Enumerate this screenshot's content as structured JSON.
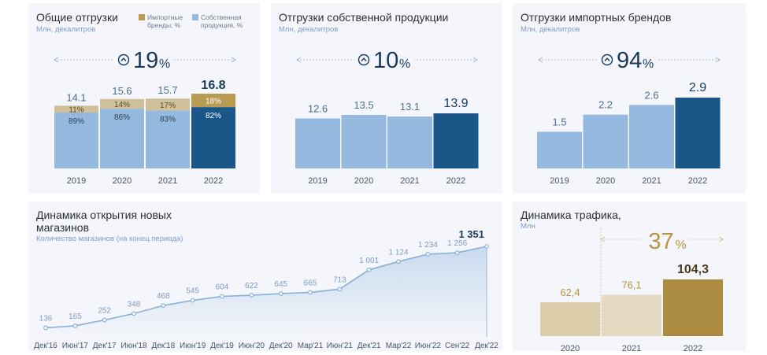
{
  "colors": {
    "own_light": "#95b8de",
    "own_dark": "#1a5688",
    "import_share": "#cfc09a",
    "import_share_dark": "#b89a52",
    "line": "#8ab0d8",
    "traffic_light": "#dbcdaa",
    "traffic_light2": "#e6dbc2",
    "traffic_dark": "#ab8b3f",
    "gold_text": "#b8953e"
  },
  "chart_data": [
    {
      "id": "total_shipments",
      "type": "bar",
      "title": "Общие отгрузки",
      "subtitle": "Млн, декалитров",
      "categories": [
        "2019",
        "2020",
        "2021",
        "2022"
      ],
      "values": [
        14.1,
        15.6,
        15.7,
        16.8
      ],
      "value_labels": [
        "14.1",
        "15.6",
        "15.7",
        "16.8"
      ],
      "series": [
        {
          "name": "Импортные бренды, %",
          "values": [
            11,
            14,
            17,
            18
          ],
          "labels": [
            "11%",
            "14%",
            "17%",
            "18%"
          ]
        },
        {
          "name": "Собственная продукция, %",
          "values": [
            89,
            86,
            83,
            82
          ],
          "labels": [
            "89%",
            "86%",
            "83%",
            "82%"
          ]
        }
      ],
      "growth": {
        "number": "19",
        "unit": "%"
      },
      "ylim": [
        0,
        18
      ]
    },
    {
      "id": "own_shipments",
      "type": "bar",
      "title": "Отгрузки собственной продукции",
      "subtitle": "Млн, декалитров",
      "categories": [
        "2019",
        "2020",
        "2021",
        "2022"
      ],
      "values": [
        12.6,
        13.5,
        13.1,
        13.9
      ],
      "value_labels": [
        "12.6",
        "13.5",
        "13.1",
        "13.9"
      ],
      "growth": {
        "number": "10",
        "unit": "%"
      },
      "ylim": [
        0,
        26
      ]
    },
    {
      "id": "import_shipments",
      "type": "bar",
      "title": "Отгрузки импортных брендов",
      "subtitle": "Млн, декалитров",
      "categories": [
        "2019",
        "2020",
        "2021",
        "2022"
      ],
      "values": [
        1.5,
        2.2,
        2.6,
        2.9
      ],
      "value_labels": [
        "1.5",
        "2.2",
        "2.6",
        "2.9"
      ],
      "growth": {
        "number": "94",
        "unit": "%"
      },
      "ylim": [
        0,
        3.2
      ]
    },
    {
      "id": "stores",
      "type": "area",
      "title_line1": "Динамика открытия новых",
      "title_line2": "магазинов",
      "subtitle": "Количество магазинов (на конец периода)",
      "x": [
        "Дек'16",
        "Июн'17",
        "Дек'17",
        "Июн'18",
        "Дек'18",
        "Июн'19",
        "Дек'19",
        "Июн'20",
        "Дек'20",
        "Мар'21",
        "Июн'21",
        "Дек'21",
        "Мар'22",
        "Июн'22",
        "Сен'22",
        "Дек'22"
      ],
      "values": [
        136,
        165,
        252,
        348,
        468,
        545,
        604,
        622,
        645,
        665,
        713,
        1001,
        1124,
        1234,
        1256,
        1351
      ],
      "value_labels": [
        "136",
        "165",
        "252",
        "348",
        "468",
        "545",
        "604",
        "622",
        "645",
        "665",
        "713",
        "1 001",
        "1 124",
        "1 234",
        "1 256",
        "1 351"
      ],
      "ylim": [
        0,
        1400
      ]
    },
    {
      "id": "traffic",
      "type": "bar",
      "title": "Динамика трафика,",
      "subtitle": "Млн",
      "categories": [
        "2020",
        "2021",
        "2022"
      ],
      "values": [
        62.4,
        76.1,
        104.3
      ],
      "value_labels": [
        "62,4",
        "76,1",
        "104,3"
      ],
      "growth": {
        "number": "37",
        "unit": "%"
      },
      "ylim": [
        0,
        115
      ]
    }
  ]
}
